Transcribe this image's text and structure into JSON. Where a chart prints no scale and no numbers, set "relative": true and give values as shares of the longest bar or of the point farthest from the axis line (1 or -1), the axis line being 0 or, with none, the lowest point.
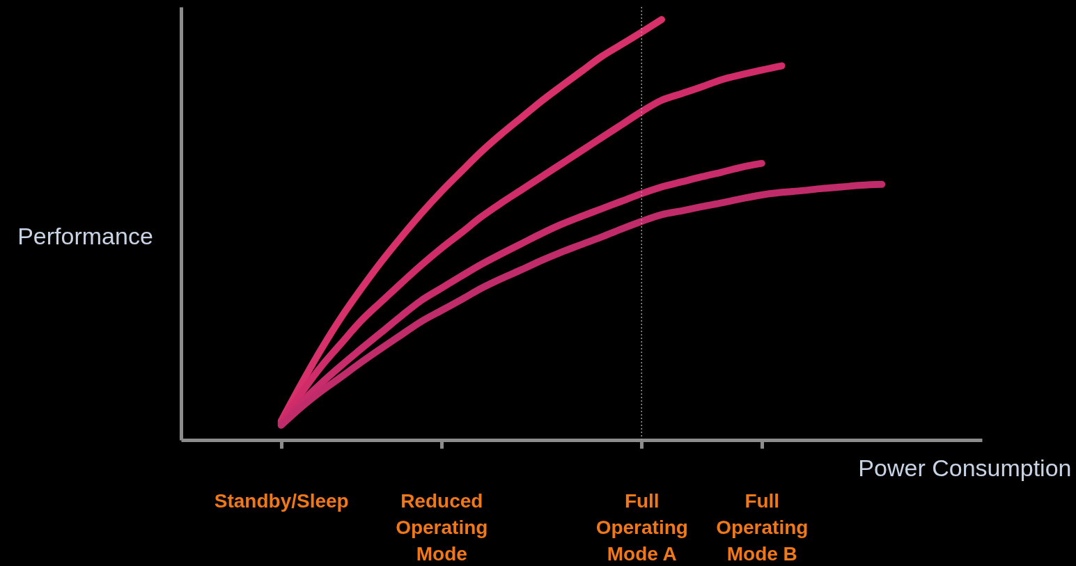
{
  "chart_data": {
    "type": "line",
    "relative": true,
    "xlabel": "Power Consumption",
    "ylabel": "Performance",
    "categories": [
      null,
      null,
      null,
      null,
      null,
      "Standby/Sleep",
      null,
      null,
      null,
      null,
      null,
      null,
      null,
      "Reduced Operating Mode",
      null,
      null,
      null,
      null,
      null,
      null,
      null,
      null,
      null,
      "Full Operating Mode A",
      null,
      null,
      null,
      null,
      null,
      "Full Operating Mode B",
      null,
      null,
      null,
      null,
      null,
      null,
      null,
      null,
      null,
      null,
      null
    ],
    "ref_lines": [
      {
        "axis": "x",
        "value": "Full Operating Mode A",
        "label": null,
        "line_style": "dotted",
        "color": "#9a9a9a"
      }
    ],
    "grid": false,
    "marker": "none",
    "line_style": "solid",
    "series": [
      {
        "color": "#d8306a",
        "values": [
          null,
          null,
          null,
          null,
          null,
          0.045,
          0.133,
          0.216,
          0.292,
          0.36,
          0.424,
          0.483,
          0.539,
          0.591,
          0.639,
          0.686,
          0.728,
          0.767,
          0.806,
          0.842,
          0.877,
          0.912,
          0.941,
          0.97,
          1.0,
          null,
          null,
          null,
          null,
          null,
          null,
          null,
          null,
          null,
          null,
          null,
          null,
          null,
          null,
          null,
          null
        ]
      },
      {
        "color": "#d02c6a",
        "values": [
          null,
          null,
          null,
          null,
          null,
          0.041,
          0.111,
          0.175,
          0.23,
          0.284,
          0.329,
          0.373,
          0.416,
          0.456,
          0.493,
          0.531,
          0.564,
          0.595,
          0.626,
          0.657,
          0.688,
          0.719,
          0.75,
          0.781,
          0.808,
          0.824,
          0.84,
          0.857,
          0.869,
          0.88,
          0.89,
          null,
          null,
          null,
          null,
          null,
          null,
          null,
          null,
          null,
          null
        ]
      },
      {
        "color": "#c82c6a",
        "values": [
          null,
          null,
          null,
          null,
          null,
          0.037,
          0.089,
          0.135,
          0.177,
          0.217,
          0.256,
          0.295,
          0.332,
          0.361,
          0.39,
          0.418,
          0.443,
          0.467,
          0.491,
          0.513,
          0.532,
          0.55,
          0.568,
          0.586,
          0.602,
          0.614,
          0.626,
          0.637,
          0.649,
          0.658,
          null,
          null,
          null,
          null,
          null,
          null,
          null,
          null,
          null,
          null,
          null
        ]
      },
      {
        "color": "#c02c6a",
        "values": [
          null,
          null,
          null,
          null,
          null,
          0.035,
          0.078,
          0.116,
          0.15,
          0.185,
          0.218,
          0.25,
          0.282,
          0.308,
          0.334,
          0.361,
          0.384,
          0.405,
          0.427,
          0.447,
          0.465,
          0.483,
          0.502,
          0.52,
          0.536,
          0.545,
          0.555,
          0.564,
          0.574,
          0.583,
          0.589,
          0.593,
          0.598,
          0.602,
          0.606,
          0.608,
          null,
          null,
          null,
          null,
          null
        ]
      }
    ]
  }
}
